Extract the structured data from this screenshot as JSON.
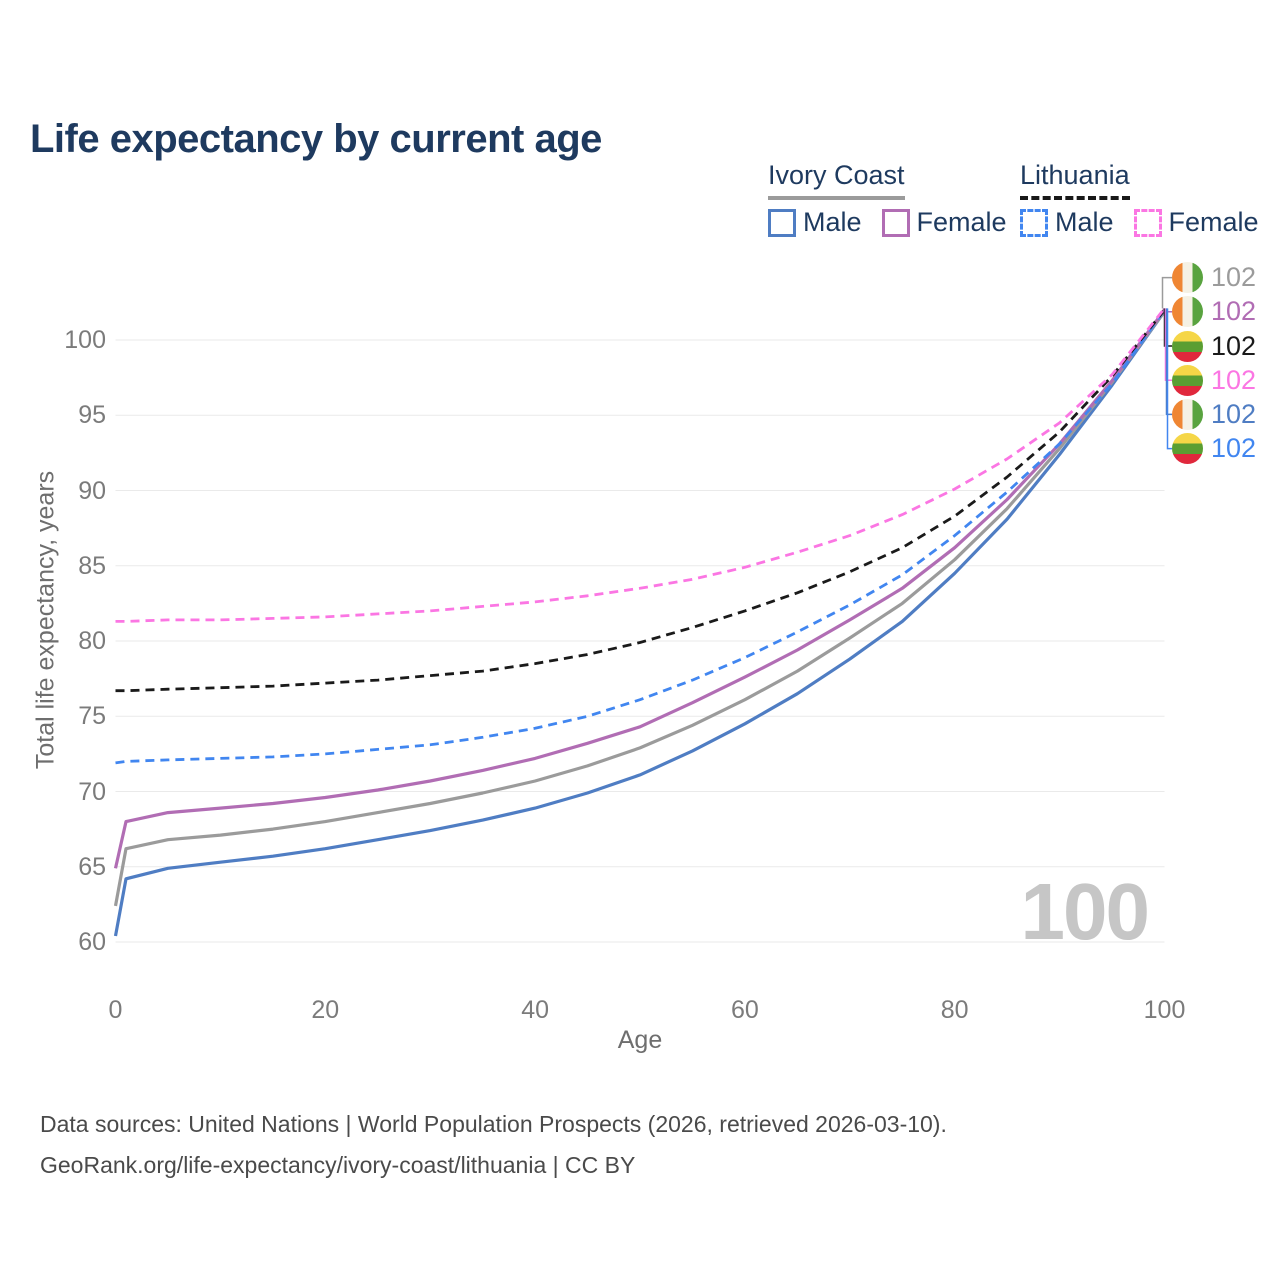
{
  "title": "Life expectancy by current age",
  "legend": {
    "groups": [
      {
        "name": "Ivory Coast",
        "line_style": "solid",
        "underline_color": "#9b9b9b",
        "items": [
          {
            "label": "Male",
            "color": "#4f7dc3"
          },
          {
            "label": "Female",
            "color": "#b16db4"
          }
        ]
      },
      {
        "name": "Lithuania",
        "line_style": "dashed",
        "underline_color": "#191919",
        "items": [
          {
            "label": "Male",
            "color": "#4186f0"
          },
          {
            "label": "Female",
            "color": "#fb76e3"
          }
        ]
      }
    ]
  },
  "chart_data": {
    "type": "line",
    "title": "Life expectancy by current age",
    "xlabel": "Age",
    "ylabel": "Total life expectancy, years",
    "xlim": [
      0,
      100
    ],
    "ylim": [
      60,
      102
    ],
    "xticks": [
      0,
      20,
      40,
      60,
      80,
      100
    ],
    "yticks": [
      60,
      65,
      70,
      75,
      80,
      85,
      90,
      95,
      100
    ],
    "grid": "horizontal",
    "legend_position": "top-right",
    "x": [
      0,
      1,
      5,
      10,
      15,
      20,
      25,
      30,
      35,
      40,
      45,
      50,
      55,
      60,
      65,
      70,
      75,
      80,
      85,
      90,
      95,
      100
    ],
    "series": [
      {
        "name": "Ivory Coast Male",
        "country": "Ivory Coast",
        "sex": "Male",
        "color": "#4f7dc3",
        "dashed": false,
        "flag": "ivory-coast",
        "end_label": "102",
        "label_row": 4,
        "values": [
          60.4,
          64.2,
          64.9,
          65.3,
          65.7,
          66.2,
          66.8,
          67.4,
          68.1,
          68.9,
          69.9,
          71.1,
          72.7,
          74.5,
          76.5,
          78.8,
          81.3,
          84.5,
          88.1,
          92.4,
          97.0,
          101.9
        ]
      },
      {
        "name": "Ivory Coast Both sexes",
        "country": "Ivory Coast",
        "sex": "Both",
        "color": "#9b9b9b",
        "dashed": false,
        "flag": "ivory-coast",
        "end_label": "102",
        "label_row": 0,
        "values": [
          62.4,
          66.2,
          66.8,
          67.1,
          67.5,
          68.0,
          68.6,
          69.2,
          69.9,
          70.7,
          71.7,
          72.9,
          74.4,
          76.1,
          78.0,
          80.2,
          82.5,
          85.4,
          88.8,
          92.8,
          97.2,
          101.9
        ]
      },
      {
        "name": "Ivory Coast Female",
        "country": "Ivory Coast",
        "sex": "Female",
        "color": "#b16db4",
        "dashed": false,
        "flag": "ivory-coast",
        "end_label": "102",
        "label_row": 1,
        "values": [
          64.9,
          68.0,
          68.6,
          68.9,
          69.2,
          69.6,
          70.1,
          70.7,
          71.4,
          72.2,
          73.2,
          74.3,
          75.9,
          77.6,
          79.4,
          81.4,
          83.5,
          86.2,
          89.4,
          93.1,
          97.3,
          102.0
        ]
      },
      {
        "name": "Lithuania Male",
        "country": "Lithuania",
        "sex": "Male",
        "color": "#4186f0",
        "dashed": true,
        "flag": "lithuania",
        "end_label": "102",
        "label_row": 5,
        "values": [
          71.9,
          72.0,
          72.1,
          72.2,
          72.3,
          72.5,
          72.8,
          73.1,
          73.6,
          74.2,
          75.0,
          76.1,
          77.4,
          78.9,
          80.6,
          82.4,
          84.4,
          87.0,
          89.9,
          93.1,
          97.1,
          102.0
        ]
      },
      {
        "name": "Lithuania Both sexes",
        "country": "Lithuania",
        "sex": "Both",
        "color": "#1a1a1a",
        "dashed": true,
        "flag": "lithuania",
        "end_label": "102",
        "label_row": 2,
        "values": [
          76.7,
          76.7,
          76.8,
          76.9,
          77.0,
          77.2,
          77.4,
          77.7,
          78.0,
          78.5,
          79.1,
          79.9,
          80.9,
          82.0,
          83.2,
          84.6,
          86.2,
          88.3,
          90.9,
          93.9,
          97.6,
          102.0
        ]
      },
      {
        "name": "Lithuania Female",
        "country": "Lithuania",
        "sex": "Female",
        "color": "#fb76e3",
        "dashed": true,
        "flag": "lithuania",
        "end_label": "102",
        "label_row": 3,
        "values": [
          81.3,
          81.3,
          81.4,
          81.4,
          81.5,
          81.6,
          81.8,
          82.0,
          82.3,
          82.6,
          83.0,
          83.5,
          84.1,
          84.9,
          85.9,
          87.0,
          88.4,
          90.1,
          92.1,
          94.5,
          97.7,
          102.1
        ]
      }
    ],
    "annotations": {
      "age_counter": "100"
    }
  },
  "footer": {
    "line1": "Data sources: United Nations | World Population Prospects (2026, retrieved 2026-03-10).",
    "line2": "GeoRank.org/life-expectancy/ivory-coast/lithuania | CC BY"
  }
}
